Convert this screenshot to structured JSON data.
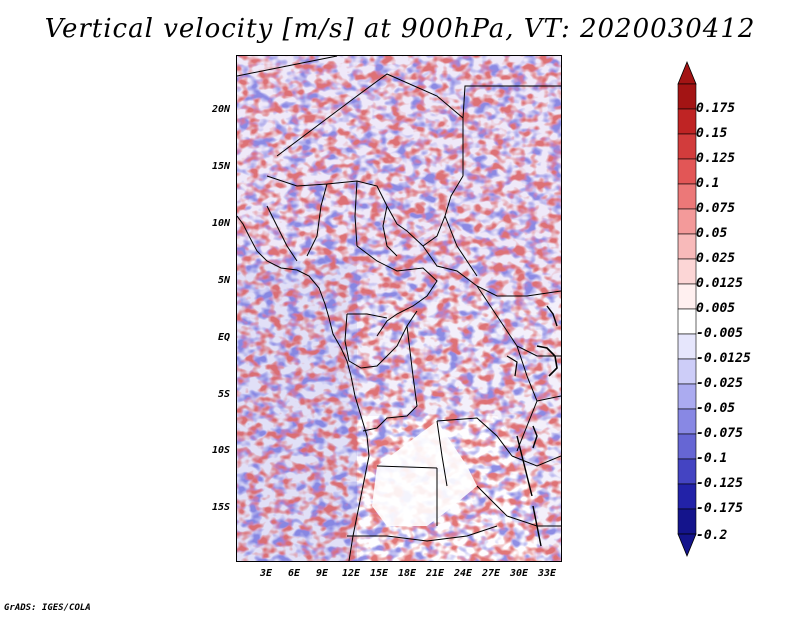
{
  "title": "Vertical velocity [m/s] at 900hPa, VT: 2020030412",
  "credit": "GrADS: IGES/COLA",
  "map": {
    "lat_labels": [
      "20N",
      "15N",
      "10N",
      "5N",
      "EQ",
      "5S",
      "10S",
      "15S"
    ],
    "lon_labels": [
      "3E",
      "6E",
      "9E",
      "12E",
      "15E",
      "18E",
      "21E",
      "24E",
      "27E",
      "30E",
      "33E"
    ]
  },
  "colorbar": {
    "labels": [
      "0.175",
      "0.15",
      "0.125",
      "0.1",
      "0.075",
      "0.05",
      "0.025",
      "0.0125",
      "0.005",
      "-0.005",
      "-0.0125",
      "-0.025",
      "-0.05",
      "-0.075",
      "-0.1",
      "-0.125",
      "-0.175",
      "-0.2"
    ],
    "colors": [
      "#a31414",
      "#bf2424",
      "#d23c3c",
      "#e25656",
      "#ec7878",
      "#f39a9a",
      "#f8baba",
      "#fcd6d6",
      "#fff0f0",
      "#ffffff",
      "#e6e6fc",
      "#cdcdf8",
      "#ababf0",
      "#8888e4",
      "#6666d4",
      "#4444c2",
      "#2222a8",
      "#14148c"
    ]
  }
}
